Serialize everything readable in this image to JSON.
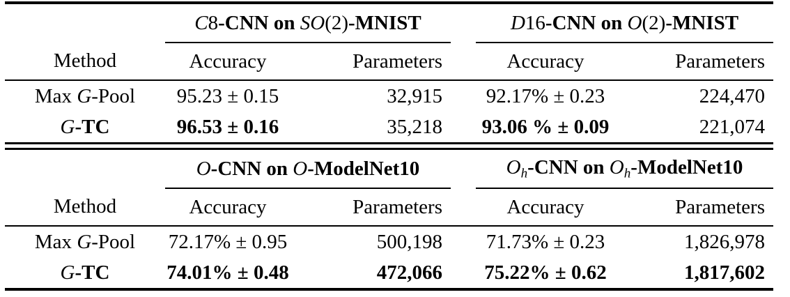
{
  "colors": {
    "text": "#000000",
    "background": "#ffffff",
    "rule": "#000000"
  },
  "table": {
    "sections": [
      {
        "group1": [
          {
            "t": "C",
            "s": "i"
          },
          {
            "t": "8"
          },
          {
            "t": "-CNN on ",
            "s": "b"
          },
          {
            "t": "SO",
            "s": "i"
          },
          {
            "t": "(2)"
          },
          {
            "t": "-MNIST",
            "s": "b"
          }
        ],
        "group2": [
          {
            "t": "D",
            "s": "i"
          },
          {
            "t": "16"
          },
          {
            "t": "-CNN on ",
            "s": "b"
          },
          {
            "t": "O",
            "s": "i"
          },
          {
            "t": "(2)"
          },
          {
            "t": "-MNIST",
            "s": "b"
          }
        ],
        "col_headers": [
          "Method",
          "Accuracy",
          "Parameters",
          "Accuracy",
          "Parameters"
        ],
        "rows": [
          {
            "method": [
              {
                "t": "Max "
              },
              {
                "t": "G",
                "s": "i"
              },
              {
                "t": "-Pool"
              }
            ],
            "cells": [
              [
                {
                  "t": "95.23 ± 0.15"
                }
              ],
              [
                {
                  "t": "32,915"
                }
              ],
              [
                {
                  "t": "92.17% ± 0.23"
                }
              ],
              [
                {
                  "t": "224,470"
                }
              ]
            ]
          },
          {
            "method": [
              {
                "t": "G",
                "s": "i"
              },
              {
                "t": "-TC",
                "s": "b"
              }
            ],
            "cells": [
              [
                {
                  "t": "96.53 ± 0.16",
                  "s": "b"
                }
              ],
              [
                {
                  "t": "35,218"
                }
              ],
              [
                {
                  "t": "93.06 % ± 0.09",
                  "s": "b"
                }
              ],
              [
                {
                  "t": "221,074"
                }
              ]
            ]
          }
        ]
      },
      {
        "group1": [
          {
            "t": "O",
            "s": "i"
          },
          {
            "t": "-CNN on ",
            "s": "b"
          },
          {
            "t": "O",
            "s": "i"
          },
          {
            "t": "-ModelNet10",
            "s": "b"
          }
        ],
        "group2": [
          {
            "t": "O",
            "s": "i"
          },
          {
            "t": "h",
            "s": "sub"
          },
          {
            "t": "-CNN on ",
            "s": "b"
          },
          {
            "t": "O",
            "s": "i"
          },
          {
            "t": "h",
            "s": "sub"
          },
          {
            "t": "-ModelNet10",
            "s": "b"
          }
        ],
        "col_headers": [
          "Method",
          "Accuracy",
          "Parameters",
          "Accuracy",
          "Parameters"
        ],
        "rows": [
          {
            "method": [
              {
                "t": "Max "
              },
              {
                "t": "G",
                "s": "i"
              },
              {
                "t": "-Pool"
              }
            ],
            "cells": [
              [
                {
                  "t": "72.17% ± 0.95"
                }
              ],
              [
                {
                  "t": "500,198"
                }
              ],
              [
                {
                  "t": "71.73% ± 0.23"
                }
              ],
              [
                {
                  "t": "1,826,978"
                }
              ]
            ]
          },
          {
            "method": [
              {
                "t": "G",
                "s": "i"
              },
              {
                "t": "-TC",
                "s": "b"
              }
            ],
            "cells": [
              [
                {
                  "t": "74.01% ± 0.48",
                  "s": "b"
                }
              ],
              [
                {
                  "t": "472,066",
                  "s": "b"
                }
              ],
              [
                {
                  "t": "75.22% ± 0.62",
                  "s": "b"
                }
              ],
              [
                {
                  "t": "1,817,602",
                  "s": "b"
                }
              ]
            ]
          }
        ]
      }
    ]
  }
}
